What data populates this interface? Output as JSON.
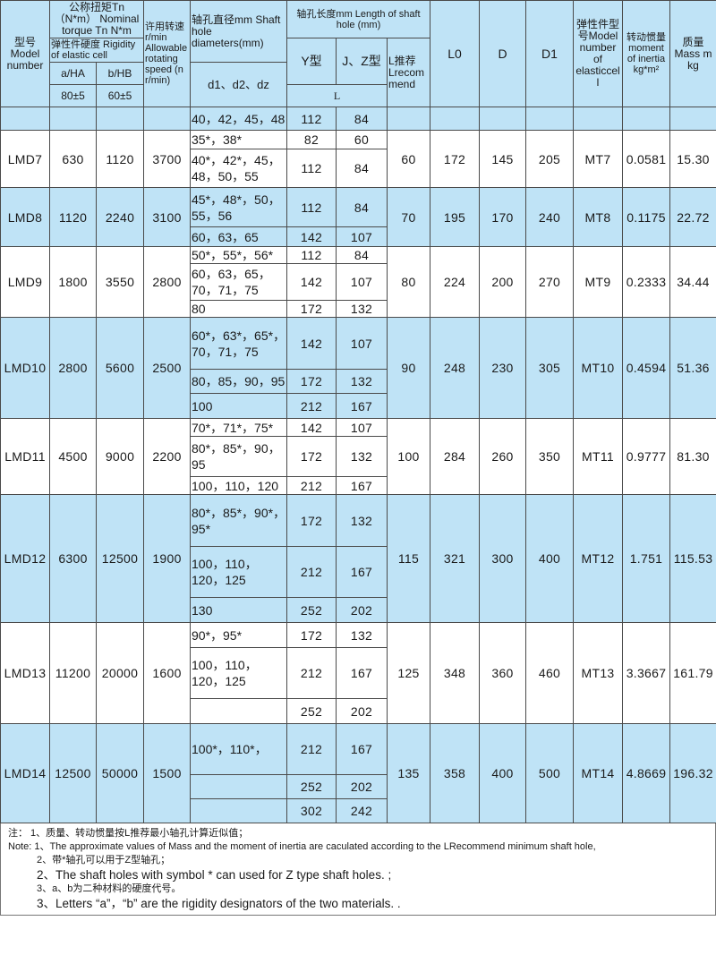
{
  "header": {
    "model": "型号 Model number",
    "torque": "公称扭矩Tn（N*m） Nominal torque Tn N*m",
    "rigidity": "弹性件硬度 Rigidity of elastic cell",
    "a": "a/HA",
    "b": "b/HB",
    "a_val": "80±5",
    "b_val": "60±5",
    "speed": "许用转速r/min Allowable rotating speed (n r/min)",
    "diam": "轴孔直径mm Shaft hole diameters(mm)",
    "d": "d1、d2、dz",
    "length": "轴孔长度mm Length of shaft hole (mm)",
    "y": "Y型",
    "jz": "J、Z型",
    "lrec": "L推荐 Lrecommend",
    "l": "L",
    "L0": "L0",
    "D": "D",
    "D1": "D1",
    "elastic": "弹性件型号Model number of elasticcell",
    "inertia": "转动惯量 moment of inertia kg*m²",
    "mass": "质量 Mass m kg"
  },
  "rows": [
    {
      "model": "",
      "a": "",
      "b": "",
      "speed": "",
      "lrec": "",
      "L0": "",
      "D": "",
      "D1": "",
      "elastic": "",
      "inertia": "",
      "mass": "",
      "holes": [
        {
          "d": "40，42，45，48",
          "y": "112",
          "jz": "84"
        }
      ]
    },
    {
      "model": "LMD7",
      "a": "630",
      "b": "1120",
      "speed": "3700",
      "lrec": "60",
      "L0": "172",
      "D": "145",
      "D1": "205",
      "elastic": "MT7",
      "inertia": "0.0581",
      "mass": "15.30",
      "holes": [
        {
          "d": "35*，38*",
          "y": "82",
          "jz": "60"
        },
        {
          "d": "40*，42*，45，48，50，55",
          "y": "112",
          "jz": "84"
        }
      ]
    },
    {
      "model": "LMD8",
      "a": "1120",
      "b": "2240",
      "speed": "3100",
      "lrec": "70",
      "L0": "195",
      "D": "170",
      "D1": "240",
      "elastic": "MT8",
      "inertia": "0.1175",
      "mass": "22.72",
      "holes": [
        {
          "d": "45*，48*，50，55，56",
          "y": "112",
          "jz": "84"
        },
        {
          "d": "60，63，65",
          "y": "142",
          "jz": "107"
        }
      ]
    },
    {
      "model": "LMD9",
      "a": "1800",
      "b": "3550",
      "speed": "2800",
      "lrec": "80",
      "L0": "224",
      "D": "200",
      "D1": "270",
      "elastic": "MT9",
      "inertia": "0.2333",
      "mass": "34.44",
      "holes": [
        {
          "d": "50*，55*，56*",
          "y": "112",
          "jz": "84"
        },
        {
          "d": "60，63，65，70，71，75",
          "y": "142",
          "jz": "107"
        },
        {
          "d": "80",
          "y": "172",
          "jz": "132"
        }
      ]
    },
    {
      "model": "LMD10",
      "a": "2800",
      "b": "5600",
      "speed": "2500",
      "lrec": "90",
      "L0": "248",
      "D": "230",
      "D1": "305",
      "elastic": "MT10",
      "inertia": "0.4594",
      "mass": "51.36",
      "holes": [
        {
          "d": "60*，63*，65*，70，71，75",
          "y": "142",
          "jz": "107"
        },
        {
          "d": "80，85，90，95",
          "y": "172",
          "jz": "132"
        },
        {
          "d": "100",
          "y": "212",
          "jz": "167"
        }
      ]
    },
    {
      "model": "LMD11",
      "a": "4500",
      "b": "9000",
      "speed": "2200",
      "lrec": "100",
      "L0": "284",
      "D": "260",
      "D1": "350",
      "elastic": "MT11",
      "inertia": "0.9777",
      "mass": "81.30",
      "holes": [
        {
          "d": "70*，71*，75*",
          "y": "142",
          "jz": "107"
        },
        {
          "d": "80*，85*，90，95",
          "y": "172",
          "jz": "132"
        },
        {
          "d": "100，110，120",
          "y": "212",
          "jz": "167"
        }
      ]
    },
    {
      "model": "LMD12",
      "a": "6300",
      "b": "12500",
      "speed": "1900",
      "lrec": "115",
      "L0": "321",
      "D": "300",
      "D1": "400",
      "elastic": "MT12",
      "inertia": "1.751",
      "mass": "115.53",
      "holes": [
        {
          "d": "80*，85*，90*，95*",
          "y": "172",
          "jz": "132"
        },
        {
          "d": "100，110，120，125",
          "y": "212",
          "jz": "167"
        },
        {
          "d": "130",
          "y": "252",
          "jz": "202"
        }
      ]
    },
    {
      "model": "LMD13",
      "a": "11200",
      "b": "20000",
      "speed": "1600",
      "lrec": "125",
      "L0": "348",
      "D": "360",
      "D1": "460",
      "elastic": "MT13",
      "inertia": "3.3667",
      "mass": "161.79",
      "holes": [
        {
          "d": "90*，95*",
          "y": "172",
          "jz": "132"
        },
        {
          "d": "100，110，120，125",
          "y": "212",
          "jz": "167"
        },
        {
          "d": "",
          "y": "252",
          "jz": "202"
        }
      ]
    },
    {
      "model": "LMD14",
      "a": "12500",
      "b": "50000",
      "speed": "1500",
      "lrec": "135",
      "L0": "358",
      "D": "400",
      "D1": "500",
      "elastic": "MT14",
      "inertia": "4.8669",
      "mass": "196.32",
      "holes": [
        {
          "d": "100*，110*，",
          "y": "212",
          "jz": "167"
        },
        {
          "d": "",
          "y": "252",
          "jz": "202"
        },
        {
          "d": "",
          "y": "302",
          "jz": "242"
        }
      ]
    }
  ],
  "notes": [
    "注：   1、质量、转动惯量按L推荐最小轴孔计算近似值；",
    "Note: 1、The approximate values of Mass and the moment of inertia are caculated according to the LRecommend minimum shaft hole,",
    "2、带*轴孔可以用于Z型轴孔；",
    "2、The shaft holes with symbol * can used for Z type shaft holes. ;",
    "3、a、b为二种材料的硬度代号。",
    "3、Letters “a”，“b”  are the rigidity designators of the two materials. ."
  ],
  "colors": {
    "blue": "#bfe3f6",
    "border": "#4a4a4a"
  }
}
